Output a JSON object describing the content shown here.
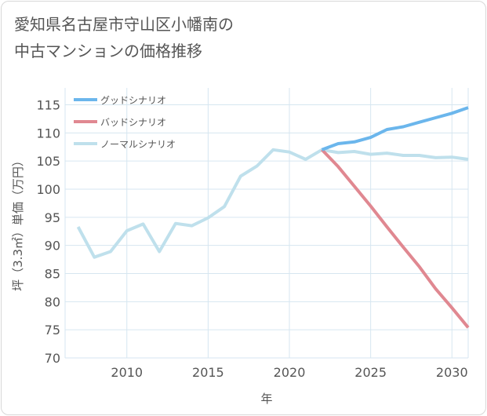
{
  "title": {
    "line1": "愛知県名古屋市守山区小幡南の",
    "line2": "中古マンションの価格推移"
  },
  "colors": {
    "good": "#6bb6ec",
    "bad": "#e08891",
    "normal": "#bfe0ec",
    "grid": "#d6e6f0",
    "text": "#555555"
  },
  "chart_data": {
    "type": "line",
    "xlabel": "年",
    "ylabel": "坪（3.3㎡）単価（万円）",
    "xlim": [
      2006.2,
      2031
    ],
    "ylim": [
      70,
      118
    ],
    "x_ticks": [
      2010,
      2015,
      2020,
      2025,
      2030
    ],
    "y_ticks": [
      70,
      75,
      80,
      85,
      90,
      95,
      100,
      105,
      110,
      115
    ],
    "grid": true,
    "legend_position": "top-left",
    "series": [
      {
        "name": "グッドシナリオ",
        "color": "#6bb6ec",
        "points": [
          [
            2022,
            107.0
          ],
          [
            2023,
            108.1
          ],
          [
            2024,
            108.4
          ],
          [
            2025,
            109.2
          ],
          [
            2026,
            110.6
          ],
          [
            2027,
            111.1
          ],
          [
            2028,
            111.9
          ],
          [
            2029,
            112.7
          ],
          [
            2030,
            113.5
          ],
          [
            2031,
            114.5
          ]
        ]
      },
      {
        "name": "バッドシナリオ",
        "color": "#e08891",
        "points": [
          [
            2022,
            107.0
          ],
          [
            2023,
            104.0
          ],
          [
            2024,
            100.5
          ],
          [
            2025,
            97.0
          ],
          [
            2026,
            93.3
          ],
          [
            2027,
            89.7
          ],
          [
            2028,
            86.2
          ],
          [
            2029,
            82.3
          ],
          [
            2030,
            78.9
          ],
          [
            2031,
            75.4
          ]
        ]
      },
      {
        "name": "ノーマルシナリオ",
        "color": "#bfe0ec",
        "points": [
          [
            2007,
            93.3
          ],
          [
            2008,
            87.9
          ],
          [
            2009,
            88.9
          ],
          [
            2010,
            92.6
          ],
          [
            2011,
            93.8
          ],
          [
            2012,
            88.9
          ],
          [
            2013,
            93.9
          ],
          [
            2014,
            93.5
          ],
          [
            2015,
            94.9
          ],
          [
            2016,
            96.9
          ],
          [
            2017,
            102.3
          ],
          [
            2018,
            104.1
          ],
          [
            2019,
            107.0
          ],
          [
            2020,
            106.6
          ],
          [
            2021,
            105.3
          ],
          [
            2022,
            107.0
          ],
          [
            2023,
            106.5
          ],
          [
            2024,
            106.7
          ],
          [
            2025,
            106.2
          ],
          [
            2026,
            106.4
          ],
          [
            2027,
            106.0
          ],
          [
            2028,
            106.0
          ],
          [
            2029,
            105.6
          ],
          [
            2030,
            105.7
          ],
          [
            2031,
            105.3
          ]
        ]
      }
    ]
  }
}
